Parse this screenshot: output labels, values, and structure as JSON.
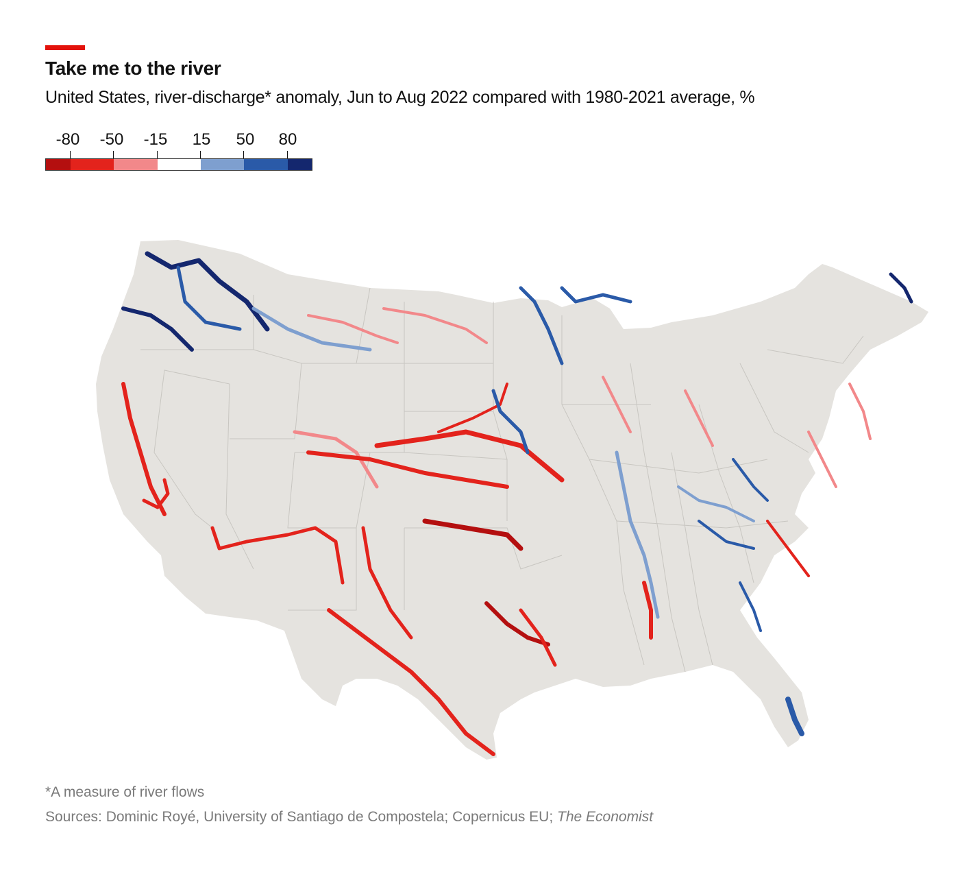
{
  "header": {
    "title": "Take me to the river",
    "subtitle": "United States, river-discharge* anomaly, Jun to Aug 2022 compared with 1980-2021 average, %"
  },
  "legend": {
    "tick_labels": [
      "-80",
      "-50",
      "-15",
      "15",
      "50",
      "80"
    ],
    "bins": [
      {
        "range": "below -80",
        "color": "#b40f0f"
      },
      {
        "range": "-80 to -50",
        "color": "#e3231c"
      },
      {
        "range": "-50 to -15",
        "color": "#f2888a"
      },
      {
        "range": "-15 to 15",
        "color": "#ffffff"
      },
      {
        "range": "15 to 50",
        "color": "#7e9fcf"
      },
      {
        "range": "50 to 80",
        "color": "#2a5aa8"
      },
      {
        "range": "above 80",
        "color": "#14276e"
      }
    ]
  },
  "map": {
    "region": "Contiguous United States",
    "land_color": "#e5e3df",
    "border_color": "#c8c6c1"
  },
  "footer": {
    "footnote": "*A measure of river flows",
    "sources_prefix": "Sources: Dominic Royé, University of Santiago de Compostela; Copernicus EU; ",
    "sources_italic": "The Economist"
  }
}
